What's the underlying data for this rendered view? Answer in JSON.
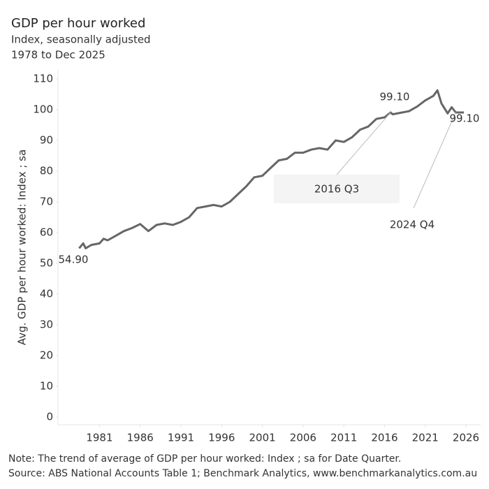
{
  "chart_data": {
    "type": "line",
    "title": "GDP per hour worked",
    "subtitle": [
      "Index, seasonally adjusted",
      "1978 to Dec 2025"
    ],
    "y_label": "Avg. GDP per hour worked: Index ; sa",
    "notes": [
      "Note: The trend of average of GDP per hour worked: Index ; sa for Date Quarter.",
      "Source: ABS National Accounts Table 1; Benchmark Analytics, www.benchmarkanalytics.com.au"
    ],
    "color": "#666666",
    "x": [
      1978.5,
      1979,
      1979.3,
      1980,
      1981,
      1981.5,
      1982,
      1983,
      1984,
      1985,
      1986,
      1987,
      1988,
      1989,
      1990,
      1991,
      1992,
      1993,
      1994,
      1995,
      1996,
      1997,
      1998,
      1999,
      2000,
      2001,
      2002,
      2003,
      2004,
      2005,
      2006,
      2007,
      2008,
      2009,
      2010,
      2011,
      2012,
      2013,
      2014,
      2015,
      2016,
      2016.75,
      2017,
      2018,
      2019,
      2020,
      2021,
      2022,
      2022.5,
      2023,
      2023.75,
      2024.25,
      2024.75,
      2025.75
    ],
    "values": [
      54.9,
      56.5,
      54.9,
      56,
      56.5,
      58,
      57.5,
      59,
      60.5,
      61.5,
      62.8,
      60.5,
      62.5,
      63,
      62.5,
      63.5,
      65,
      68,
      68.5,
      69,
      68.5,
      70,
      72.5,
      75,
      78,
      78.5,
      81,
      83.5,
      84,
      86,
      86,
      87,
      87.5,
      87,
      90,
      89.5,
      91,
      93.5,
      94.5,
      97,
      97.5,
      99.1,
      98.5,
      99,
      99.5,
      101,
      103,
      104.5,
      106.3,
      102,
      98.8,
      100.8,
      99.1,
      99.1
    ],
    "annotations": [
      {
        "label": "54.90",
        "x": 1978.5,
        "y": 54.9
      },
      {
        "text": "2016 Q3",
        "label": "99.10",
        "x": 2016.75,
        "y": 99.1
      },
      {
        "text": "2024 Q4",
        "label": "99.10",
        "x": 2024.75,
        "y": 99.1
      }
    ],
    "xlim": [
      1975.9,
      2027.8
    ],
    "xticks": [
      1981,
      1986,
      1991,
      1996,
      2001,
      2006,
      2011,
      2016,
      2021,
      2026
    ],
    "ylim": [
      0,
      110
    ],
    "yticks": [
      0,
      10,
      20,
      30,
      40,
      50,
      60,
      70,
      80,
      90,
      100,
      110
    ],
    "grid": false
  }
}
